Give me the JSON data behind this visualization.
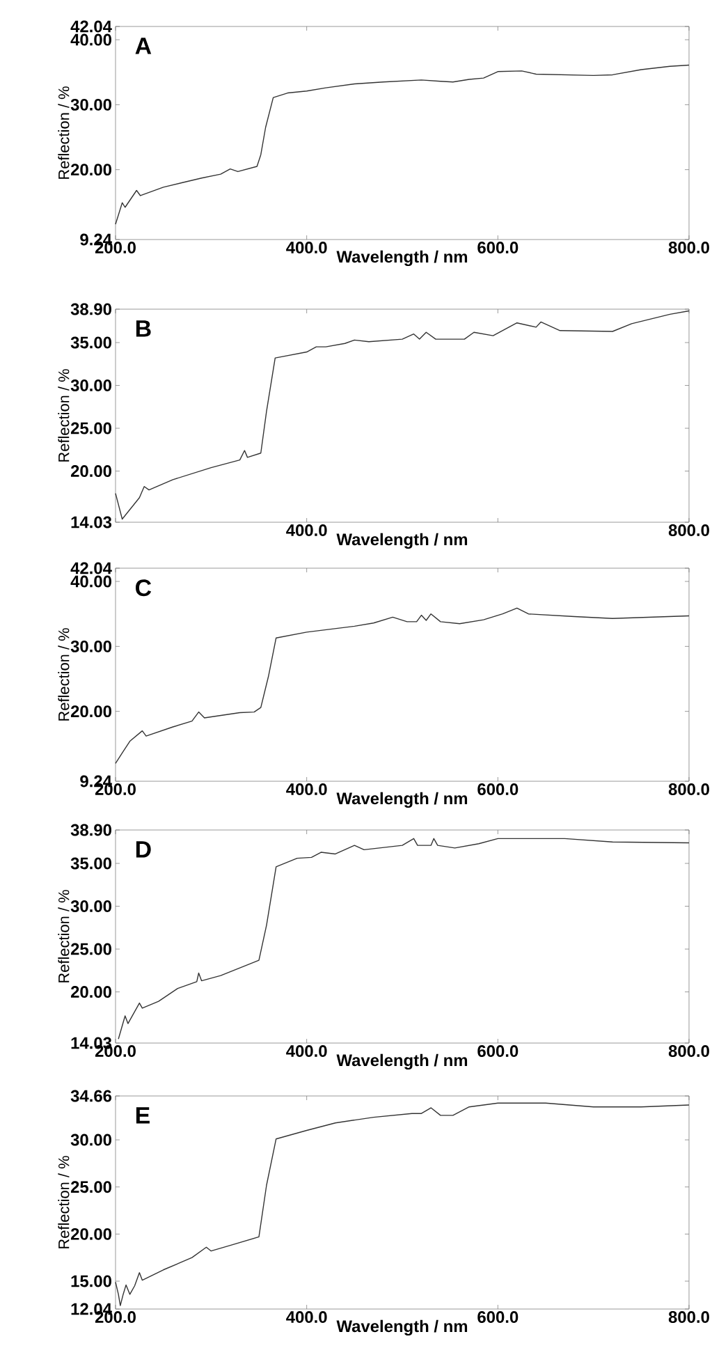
{
  "chart_data": [
    {
      "type": "line",
      "xlabel": "Wavelength / nm",
      "ylabel": "Reflection / %",
      "annotations": [
        "A"
      ],
      "color": "#333333",
      "xlim": [
        200,
        800
      ],
      "ylim": [
        9.24,
        42.04
      ],
      "xticks": [
        {
          "value": 200,
          "label": "200.0"
        },
        {
          "value": 400,
          "label": "400.0"
        },
        {
          "value": 600,
          "label": "600.0"
        },
        {
          "value": 800,
          "label": "800.0"
        }
      ],
      "yticks": [
        {
          "value": 9.24,
          "label": "9.24"
        },
        {
          "value": 20,
          "label": "20.00"
        },
        {
          "value": 30,
          "label": "30.00"
        },
        {
          "value": 40,
          "label": "40.00"
        },
        {
          "value": 42.04,
          "label": "42.04"
        }
      ],
      "x": [
        200,
        207,
        210,
        222,
        226,
        250,
        270,
        290,
        310,
        320,
        328,
        348,
        352,
        357,
        365,
        380,
        400,
        420,
        450,
        480,
        520,
        540,
        553,
        570,
        585,
        600,
        625,
        640,
        700,
        720,
        750,
        780,
        800
      ],
      "values": [
        11.6,
        14.9,
        14.2,
        16.8,
        16.0,
        17.3,
        18.0,
        18.7,
        19.3,
        20.1,
        19.7,
        20.5,
        22.3,
        26.5,
        31.1,
        31.8,
        32.1,
        32.6,
        33.2,
        33.5,
        33.8,
        33.6,
        33.5,
        33.9,
        34.1,
        35.1,
        35.2,
        34.7,
        34.5,
        34.6,
        35.4,
        35.9,
        36.1
      ]
    },
    {
      "type": "line",
      "xlabel": "Wavelength / nm",
      "ylabel": "Reflection / %",
      "annotations": [
        "B"
      ],
      "color": "#333333",
      "xlim": [
        200,
        800
      ],
      "ylim": [
        14.03,
        38.9
      ],
      "xticks": [
        {
          "value": 200,
          "label": null
        },
        {
          "value": 400,
          "label": "400.0"
        },
        {
          "value": 600,
          "label": null
        },
        {
          "value": 800,
          "label": "800.0"
        }
      ],
      "yticks": [
        {
          "value": 14.03,
          "label": "14.03"
        },
        {
          "value": 20,
          "label": "20.00"
        },
        {
          "value": 25,
          "label": "25.00"
        },
        {
          "value": 30,
          "label": "30.00"
        },
        {
          "value": 35,
          "label": "35.00"
        },
        {
          "value": 38.9,
          "label": "38.90"
        }
      ],
      "x": [
        200,
        207,
        225,
        230,
        235,
        260,
        300,
        330,
        335,
        338,
        352,
        358,
        367,
        400,
        410,
        420,
        440,
        450,
        465,
        500,
        512,
        518,
        525,
        535,
        565,
        575,
        595,
        620,
        640,
        645,
        665,
        720,
        740,
        780,
        800
      ],
      "values": [
        17.4,
        14.4,
        16.9,
        18.2,
        17.8,
        19.0,
        20.4,
        21.3,
        22.4,
        21.6,
        22.1,
        27.0,
        33.2,
        33.9,
        34.5,
        34.5,
        34.9,
        35.3,
        35.1,
        35.4,
        36.0,
        35.4,
        36.2,
        35.4,
        35.4,
        36.2,
        35.8,
        37.3,
        36.8,
        37.4,
        36.4,
        36.3,
        37.2,
        38.3,
        38.7
      ]
    },
    {
      "type": "line",
      "xlabel": "Wavelength / nm",
      "ylabel": "Reflection / %",
      "annotations": [
        "C"
      ],
      "color": "#333333",
      "xlim": [
        200,
        800
      ],
      "ylim": [
        9.24,
        42.04
      ],
      "xticks": [
        {
          "value": 200,
          "label": "200.0"
        },
        {
          "value": 400,
          "label": "400.0"
        },
        {
          "value": 600,
          "label": "600.0"
        },
        {
          "value": 800,
          "label": "800.0"
        }
      ],
      "yticks": [
        {
          "value": 9.24,
          "label": "9.24"
        },
        {
          "value": 20,
          "label": "20.00"
        },
        {
          "value": 30,
          "label": "30.00"
        },
        {
          "value": 40,
          "label": "40.00"
        },
        {
          "value": 42.04,
          "label": "42.04"
        }
      ],
      "x": [
        200,
        207,
        215,
        228,
        232,
        260,
        280,
        287,
        293,
        330,
        345,
        352,
        360,
        368,
        400,
        450,
        470,
        490,
        505,
        515,
        520,
        525,
        530,
        540,
        560,
        585,
        605,
        620,
        632,
        680,
        720,
        800
      ],
      "values": [
        12.0,
        13.6,
        15.4,
        17.0,
        16.2,
        17.6,
        18.5,
        19.9,
        19.0,
        19.8,
        19.9,
        20.6,
        25.4,
        31.3,
        32.2,
        33.1,
        33.6,
        34.5,
        33.8,
        33.8,
        34.8,
        34.0,
        35.0,
        33.8,
        33.5,
        34.1,
        35.0,
        35.9,
        35.0,
        34.6,
        34.3,
        34.7
      ]
    },
    {
      "type": "line",
      "xlabel": "Wavelength / nm",
      "ylabel": "Reflection / %",
      "annotations": [
        "D"
      ],
      "color": "#333333",
      "xlim": [
        200,
        800
      ],
      "ylim": [
        14.03,
        38.9
      ],
      "xticks": [
        {
          "value": 200,
          "label": "200.0"
        },
        {
          "value": 400,
          "label": "400.0"
        },
        {
          "value": 600,
          "label": "600.0"
        },
        {
          "value": 800,
          "label": "800.0"
        }
      ],
      "yticks": [
        {
          "value": 14.03,
          "label": "14.03"
        },
        {
          "value": 20,
          "label": "20.00"
        },
        {
          "value": 25,
          "label": "25.00"
        },
        {
          "value": 30,
          "label": "30.00"
        },
        {
          "value": 35,
          "label": "35.00"
        },
        {
          "value": 38.9,
          "label": "38.90"
        }
      ],
      "x": [
        203,
        210,
        213,
        225,
        228,
        245,
        265,
        285,
        287,
        290,
        310,
        350,
        358,
        368,
        390,
        405,
        415,
        430,
        450,
        460,
        500,
        512,
        516,
        530,
        533,
        537,
        555,
        580,
        600,
        670,
        720,
        800
      ],
      "values": [
        14.5,
        17.2,
        16.3,
        18.7,
        18.1,
        18.9,
        20.4,
        21.2,
        22.2,
        21.3,
        21.9,
        23.7,
        27.8,
        34.6,
        35.6,
        35.7,
        36.3,
        36.1,
        37.1,
        36.6,
        37.1,
        37.9,
        37.1,
        37.1,
        37.9,
        37.1,
        36.8,
        37.3,
        37.9,
        37.9,
        37.5,
        37.4
      ]
    },
    {
      "type": "line",
      "xlabel": "Wavelength / nm",
      "ylabel": "Reflection / %",
      "annotations": [
        "E"
      ],
      "color": "#333333",
      "xlim": [
        200,
        800
      ],
      "ylim": [
        12.04,
        34.66
      ],
      "xticks": [
        {
          "value": 200,
          "label": "200.0"
        },
        {
          "value": 400,
          "label": "400.0"
        },
        {
          "value": 600,
          "label": "600.0"
        },
        {
          "value": 800,
          "label": "800.0"
        }
      ],
      "yticks": [
        {
          "value": 12.04,
          "label": "12.04"
        },
        {
          "value": 15,
          "label": "15.00"
        },
        {
          "value": 20,
          "label": "20.00"
        },
        {
          "value": 25,
          "label": "25.00"
        },
        {
          "value": 30,
          "label": "30.00"
        },
        {
          "value": 34.66,
          "label": "34.66"
        }
      ],
      "x": [
        200,
        203,
        205,
        208,
        211,
        215,
        220,
        225,
        228,
        250,
        280,
        295,
        300,
        320,
        350,
        358,
        368,
        400,
        430,
        470,
        510,
        520,
        530,
        540,
        553,
        570,
        600,
        650,
        700,
        750,
        800
      ],
      "values": [
        14.9,
        13.6,
        12.4,
        13.6,
        14.6,
        13.6,
        14.5,
        15.9,
        15.1,
        16.2,
        17.5,
        18.6,
        18.2,
        18.8,
        19.7,
        25.2,
        30.1,
        31.0,
        31.8,
        32.4,
        32.8,
        32.8,
        33.4,
        32.6,
        32.6,
        33.5,
        33.9,
        33.9,
        33.5,
        33.5,
        33.7
      ]
    }
  ]
}
